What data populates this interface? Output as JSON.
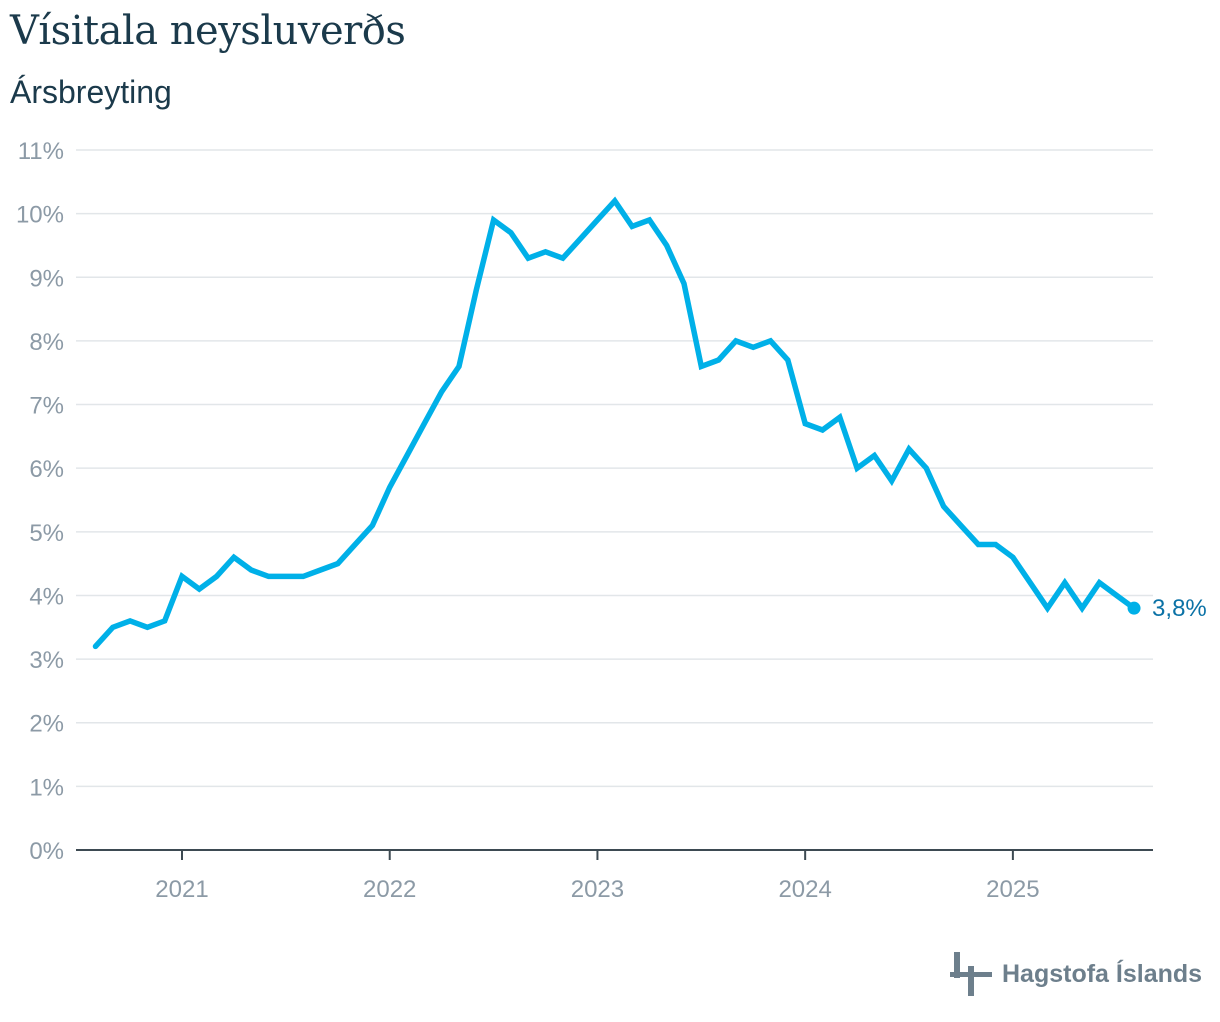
{
  "header": {
    "title": "Vísitala neysluverðs",
    "subtitle": "Ársbreyting"
  },
  "footer": {
    "brand": "Hagstofa Íslands"
  },
  "colors": {
    "line": "#00b0e8",
    "end_label": "#0b72a6",
    "grid": "#e2e6e9",
    "axis": "#3d4a52",
    "tick_text": "#8c9aa6"
  },
  "chart_data": {
    "type": "line",
    "title": "Vísitala neysluverðs",
    "subtitle": "Ársbreyting",
    "xlabel": "",
    "ylabel": "",
    "ylim": [
      0,
      11
    ],
    "yticks": [
      0,
      1,
      2,
      3,
      4,
      5,
      6,
      7,
      8,
      9,
      10,
      11
    ],
    "ytick_labels": [
      "0%",
      "1%",
      "2%",
      "3%",
      "4%",
      "5%",
      "6%",
      "7%",
      "8%",
      "9%",
      "10%",
      "11%"
    ],
    "xtick_labels": [
      "2021",
      "2022",
      "2023",
      "2024",
      "2025"
    ],
    "grid": true,
    "end_label": "3,8%",
    "series": [
      {
        "x": [
          "2020-08",
          "2020-09",
          "2020-10",
          "2020-11",
          "2020-12",
          "2021-01",
          "2021-02",
          "2021-03",
          "2021-04",
          "2021-05",
          "2021-06",
          "2021-07",
          "2021-08",
          "2021-09",
          "2021-10",
          "2021-11",
          "2021-12",
          "2022-01",
          "2022-02",
          "2022-03",
          "2022-04",
          "2022-05",
          "2022-06",
          "2022-07",
          "2022-08",
          "2022-09",
          "2022-10",
          "2022-11",
          "2022-12",
          "2023-01",
          "2023-02",
          "2023-03",
          "2023-04",
          "2023-05",
          "2023-06",
          "2023-07",
          "2023-08",
          "2023-09",
          "2023-10",
          "2023-11",
          "2023-12",
          "2024-01",
          "2024-02",
          "2024-03",
          "2024-04",
          "2024-05",
          "2024-06",
          "2024-07",
          "2024-08",
          "2024-09",
          "2024-10",
          "2024-11",
          "2024-12",
          "2025-01",
          "2025-02",
          "2025-03",
          "2025-04",
          "2025-05",
          "2025-06",
          "2025-07",
          "2025-08"
        ],
        "values": [
          3.2,
          3.5,
          3.6,
          3.5,
          3.6,
          4.3,
          4.1,
          4.3,
          4.6,
          4.4,
          4.3,
          4.3,
          4.3,
          4.4,
          4.5,
          4.8,
          5.1,
          5.7,
          6.2,
          6.7,
          7.2,
          7.6,
          8.8,
          9.9,
          9.7,
          9.3,
          9.4,
          9.3,
          9.6,
          9.9,
          10.2,
          9.8,
          9.9,
          9.5,
          8.9,
          7.6,
          7.7,
          8.0,
          7.9,
          8.0,
          7.7,
          6.7,
          6.6,
          6.8,
          6.0,
          6.2,
          5.8,
          6.3,
          6.0,
          5.4,
          5.1,
          4.8,
          4.8,
          4.6,
          4.2,
          3.8,
          4.2,
          3.8,
          4.2,
          4.0,
          3.8
        ]
      }
    ]
  }
}
